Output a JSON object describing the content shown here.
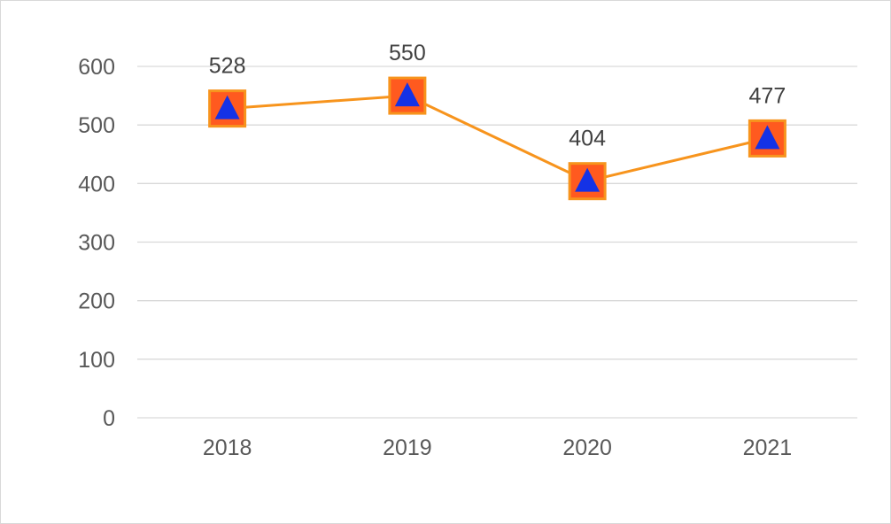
{
  "chart_data": {
    "type": "line",
    "categories": [
      "2018",
      "2019",
      "2020",
      "2021"
    ],
    "series": [
      {
        "values": [
          528,
          550,
          404,
          477
        ]
      }
    ],
    "data_labels": [
      "528",
      "550",
      "404",
      "477"
    ],
    "y_ticks": [
      "0",
      "100",
      "200",
      "300",
      "400",
      "500",
      "600"
    ],
    "ylim": [
      0,
      600
    ],
    "grid": true,
    "legend": "none",
    "colors": {
      "line": "#F7941D",
      "marker_fill": "#FF5A1F",
      "marker_border": "#F7941D",
      "marker_triangle": "#1432E6",
      "grid": "#d9d9d9",
      "tick_text": "#595959",
      "label_text": "#404040"
    }
  }
}
